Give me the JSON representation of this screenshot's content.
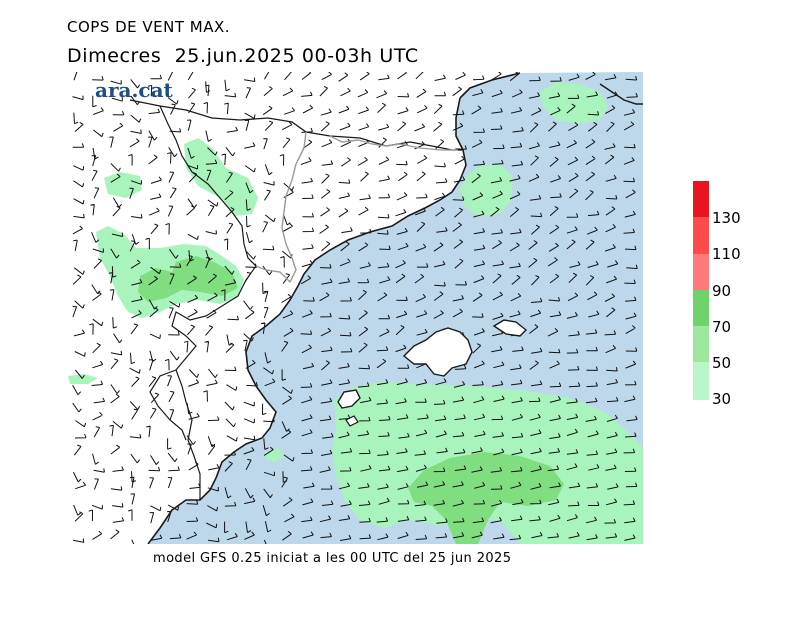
{
  "header": {
    "title": "COPS DE VENT MAX.",
    "subtitle": "Dimecres  25.jun.2025 00-03h UTC"
  },
  "logo": {
    "text": "ara.cat"
  },
  "footer": {
    "text": "model GFS 0.25 iniciat a les 00 UTC del 25 jun 2025"
  },
  "legend": {
    "labels": [
      "30",
      "50",
      "70",
      "90",
      "110",
      "130"
    ],
    "colors": [
      "#b9f7ca",
      "#9fe79c",
      "#6fd36a",
      "#ff7b7b",
      "#ff4a4a",
      "#e8141e"
    ]
  },
  "colors": {
    "sea": "#bcd8ea",
    "land": "#ffffff",
    "gust_30_50": "#a9f4bc",
    "gust_50_70": "#80de80",
    "coast": "#1a1a1a",
    "border": "#9a9a9a",
    "wind_barb": "#111111"
  }
}
